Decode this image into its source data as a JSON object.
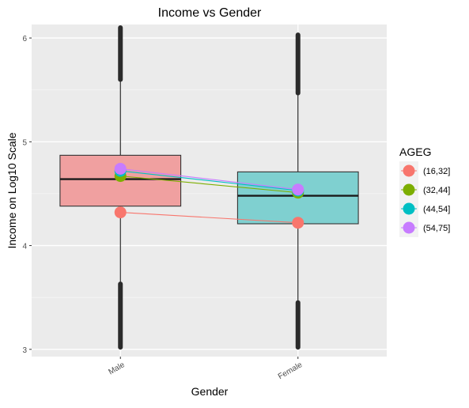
{
  "chart_data": {
    "type": "box",
    "title": "Income vs Gender",
    "xlabel": "Gender",
    "ylabel": "Income on Log10 Scale",
    "categories": [
      "Male",
      "Female"
    ],
    "ylim": [
      2.93,
      6.13
    ],
    "yticks": [
      3,
      4,
      5,
      6
    ],
    "grid": true,
    "legend_position": "right",
    "boxes": [
      {
        "category": "Male",
        "fill": "#F0A0A0",
        "whisker_low": 3.02,
        "q1": 4.38,
        "median": 4.64,
        "q3": 4.87,
        "whisker_high": 6.08,
        "outlier_low_range": [
          3.02,
          3.63
        ],
        "outlier_high_range": [
          5.6,
          6.1
        ]
      },
      {
        "category": "Female",
        "fill": "#7FD0D0",
        "whisker_low": 3.02,
        "q1": 4.21,
        "median": 4.48,
        "q3": 4.71,
        "whisker_high": 6.01,
        "outlier_low_range": [
          3.02,
          3.45
        ],
        "outlier_high_range": [
          5.47,
          6.03
        ]
      }
    ],
    "series_legend_title": "AGEG",
    "series": [
      {
        "name": "(16,32]",
        "color": "#F8766D",
        "values": [
          4.32,
          4.22
        ]
      },
      {
        "name": "(32,44]",
        "color": "#7CAE00",
        "values": [
          4.67,
          4.51
        ]
      },
      {
        "name": "(44,54]",
        "color": "#00BFC4",
        "values": [
          4.72,
          4.53
        ]
      },
      {
        "name": "(54,75]",
        "color": "#C77CFF",
        "values": [
          4.74,
          4.54
        ]
      }
    ]
  }
}
